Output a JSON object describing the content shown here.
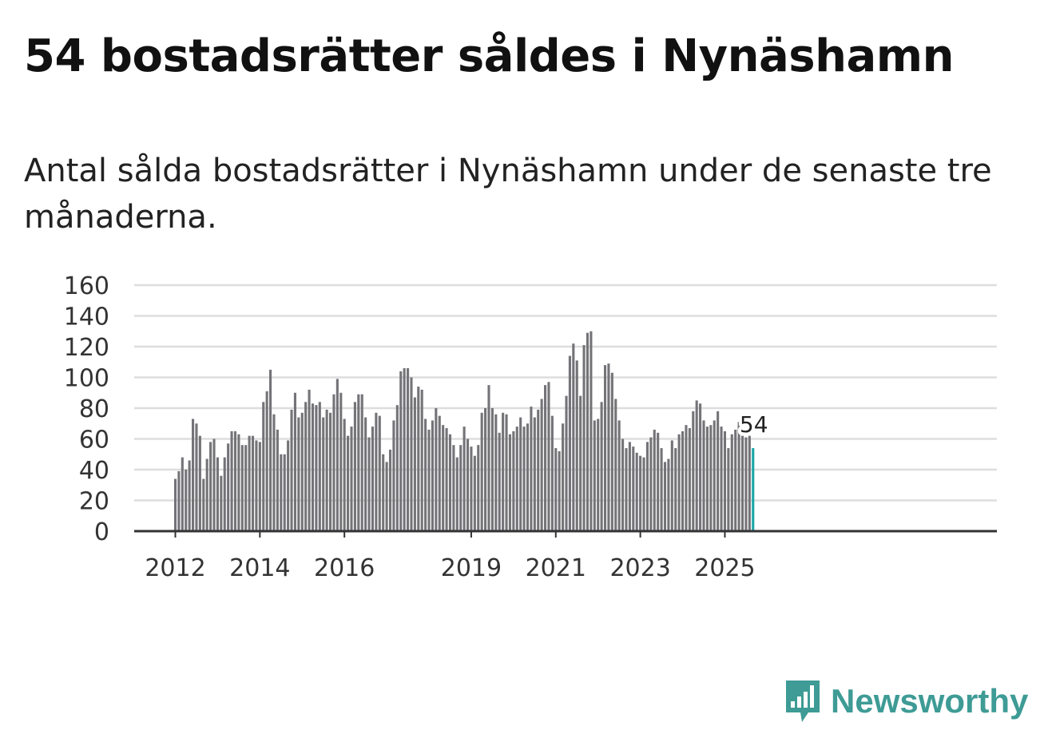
{
  "header": {
    "title": "54 bostadsrätter såldes i Nynäshamn",
    "subtitle": "Antal sålda bostadsrätter i Nynäshamn under de senaste tre månaderna."
  },
  "brand": {
    "name": "Newsworthy",
    "color": "#3e9b95",
    "icon": "newsworthy-logo-icon"
  },
  "colors": {
    "bar": "#747378",
    "highlight": "#1aa6a6",
    "grid": "#dddddd",
    "axis": "#333333"
  },
  "chart_data": {
    "type": "bar",
    "title": "Antal sålda bostadsrätter i Nynäshamn",
    "xlabel": "",
    "ylabel": "",
    "ylim": [
      0,
      160
    ],
    "yticks": [
      0,
      20,
      40,
      60,
      80,
      100,
      120,
      140,
      160
    ],
    "xtick_labels": [
      "2012",
      "2014",
      "2016",
      "2019",
      "2021",
      "2023",
      "2025"
    ],
    "xtick_positions": [
      2012,
      2014,
      2016,
      2019,
      2021,
      2023,
      2025
    ],
    "start_year": 2012,
    "months_per_bar": 1,
    "highlight_label": "54",
    "values": [
      34,
      39,
      48,
      40,
      46,
      73,
      70,
      62,
      34,
      47,
      58,
      60,
      48,
      36,
      48,
      57,
      65,
      65,
      63,
      56,
      56,
      62,
      62,
      59,
      58,
      84,
      91,
      105,
      76,
      66,
      50,
      50,
      59,
      79,
      90,
      74,
      77,
      84,
      92,
      83,
      82,
      84,
      74,
      79,
      77,
      89,
      99,
      90,
      73,
      62,
      68,
      84,
      89,
      89,
      74,
      61,
      68,
      77,
      75,
      50,
      45,
      53,
      72,
      82,
      104,
      106,
      106,
      100,
      87,
      94,
      92,
      73,
      66,
      72,
      80,
      75,
      69,
      67,
      63,
      56,
      48,
      56,
      68,
      60,
      55,
      49,
      56,
      77,
      80,
      95,
      80,
      76,
      64,
      77,
      76,
      63,
      65,
      68,
      74,
      68,
      70,
      81,
      74,
      79,
      86,
      95,
      97,
      75,
      54,
      52,
      70,
      88,
      114,
      122,
      111,
      88,
      121,
      129,
      130,
      72,
      73,
      84,
      108,
      109,
      103,
      86,
      72,
      60,
      54,
      58,
      55,
      51,
      49,
      48,
      58,
      61,
      66,
      64,
      54,
      45,
      47,
      59,
      54,
      63,
      65,
      69,
      67,
      78,
      85,
      83,
      72,
      68,
      69,
      72,
      78,
      68,
      65,
      54,
      63,
      66,
      71,
      62,
      61,
      62,
      54
    ]
  }
}
